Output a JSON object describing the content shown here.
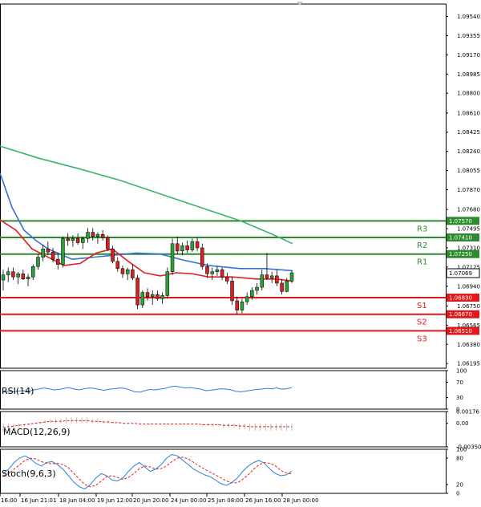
{
  "chart_data": [
    {
      "type": "candlestick",
      "price_labels": [
        "1.09540",
        "1.09355",
        "1.09170",
        "1.08985",
        "1.08800",
        "1.08610",
        "1.08425",
        "1.08240",
        "1.08055",
        "1.07870",
        "1.07680",
        "1.07495",
        "1.07310",
        "1.07125",
        "1.06940",
        "1.06750",
        "1.06565",
        "1.06380",
        "1.06195"
      ],
      "ylim": [
        1.0615,
        1.0966
      ],
      "time_labels": [
        "16:00",
        "16 Jun 21:01",
        "18 Jun 04:00",
        "19 Jun 12:00",
        "20 Jun 20:00",
        "24 Jun 00:00",
        "25 Jun 08:00",
        "26 Jun 16:00",
        "28 Jun 00:00"
      ],
      "current_price": "1.07069",
      "levels": [
        {
          "name": "R3",
          "value": 1.0757,
          "label": "1.07570",
          "color": "#2e8b2e"
        },
        {
          "name": "R2",
          "value": 1.0741,
          "label": "1.07410",
          "color": "#2e8b2e"
        },
        {
          "name": "R1",
          "value": 1.0725,
          "label": "1.07250",
          "color": "#2e8b2e"
        },
        {
          "name": "S1",
          "value": 1.0683,
          "label": "1.06830",
          "color": "#e0191b"
        },
        {
          "name": "S2",
          "value": 1.0667,
          "label": "1.06670",
          "color": "#e0191b"
        },
        {
          "name": "S3",
          "value": 1.0651,
          "label": "1.06510",
          "color": "#e0191b"
        }
      ],
      "candles": [
        [
          1.07,
          1.071,
          1.069,
          1.0705
        ],
        [
          1.0705,
          1.0712,
          1.0698,
          1.0708
        ],
        [
          1.0708,
          1.0712,
          1.07,
          1.0703
        ],
        [
          1.0703,
          1.0708,
          1.0696,
          1.0706
        ],
        [
          1.0706,
          1.071,
          1.07,
          1.0701
        ],
        [
          1.0701,
          1.0706,
          1.0694,
          1.0703
        ],
        [
          1.0703,
          1.0715,
          1.07,
          1.0713
        ],
        [
          1.0713,
          1.0725,
          1.071,
          1.0722
        ],
        [
          1.0722,
          1.0734,
          1.0718,
          1.073
        ],
        [
          1.073,
          1.0737,
          1.0724,
          1.0727
        ],
        [
          1.0727,
          1.0731,
          1.0717,
          1.072
        ],
        [
          1.072,
          1.0726,
          1.071,
          1.0715
        ],
        [
          1.0715,
          1.0742,
          1.0712,
          1.074
        ],
        [
          1.074,
          1.0745,
          1.0733,
          1.0738
        ],
        [
          1.0738,
          1.0743,
          1.0732,
          1.074
        ],
        [
          1.074,
          1.0745,
          1.0734,
          1.0736
        ],
        [
          1.0736,
          1.0742,
          1.073,
          1.074
        ],
        [
          1.074,
          1.075,
          1.0736,
          1.0746
        ],
        [
          1.0746,
          1.075,
          1.0738,
          1.0742
        ],
        [
          1.0742,
          1.0746,
          1.0735,
          1.0744
        ],
        [
          1.0744,
          1.0748,
          1.0738,
          1.0741
        ],
        [
          1.0741,
          1.0743,
          1.0728,
          1.073
        ],
        [
          1.073,
          1.0733,
          1.0716,
          1.0718
        ],
        [
          1.0718,
          1.0722,
          1.0708,
          1.0711
        ],
        [
          1.0711,
          1.0714,
          1.0702,
          1.0706
        ],
        [
          1.0706,
          1.0712,
          1.07,
          1.071
        ],
        [
          1.071,
          1.0715,
          1.07,
          1.0702
        ],
        [
          1.0702,
          1.0705,
          1.0672,
          1.0676
        ],
        [
          1.0676,
          1.069,
          1.0673,
          1.0688
        ],
        [
          1.0688,
          1.0692,
          1.068,
          1.0684
        ],
        [
          1.0684,
          1.069,
          1.0676,
          1.0686
        ],
        [
          1.0686,
          1.069,
          1.068,
          1.0682
        ],
        [
          1.0682,
          1.0688,
          1.0677,
          1.0685
        ],
        [
          1.0685,
          1.0712,
          1.0682,
          1.0708
        ],
        [
          1.0708,
          1.074,
          1.0705,
          1.0735
        ],
        [
          1.0735,
          1.0742,
          1.0725,
          1.0728
        ],
        [
          1.0728,
          1.0736,
          1.0724,
          1.0733
        ],
        [
          1.0733,
          1.0738,
          1.0726,
          1.0729
        ],
        [
          1.0729,
          1.074,
          1.0727,
          1.0737
        ],
        [
          1.0737,
          1.0741,
          1.0728,
          1.0731
        ],
        [
          1.0731,
          1.0735,
          1.071,
          1.0713
        ],
        [
          1.0713,
          1.0716,
          1.0702,
          1.0706
        ],
        [
          1.0706,
          1.0712,
          1.07,
          1.0708
        ],
        [
          1.0708,
          1.0713,
          1.0704,
          1.071
        ],
        [
          1.071,
          1.0712,
          1.07,
          1.0703
        ],
        [
          1.0703,
          1.0707,
          1.0696,
          1.0699
        ],
        [
          1.0699,
          1.0703,
          1.0676,
          1.068
        ],
        [
          1.068,
          1.0684,
          1.0667,
          1.0671
        ],
        [
          1.0671,
          1.0682,
          1.0668,
          1.0679
        ],
        [
          1.0679,
          1.0688,
          1.0676,
          1.0684
        ],
        [
          1.0684,
          1.0693,
          1.0681,
          1.069
        ],
        [
          1.069,
          1.0697,
          1.0686,
          1.0693
        ],
        [
          1.0693,
          1.071,
          1.069,
          1.0705
        ],
        [
          1.0705,
          1.0726,
          1.07,
          1.0702
        ],
        [
          1.0702,
          1.0708,
          1.0697,
          1.0704
        ],
        [
          1.0704,
          1.071,
          1.0694,
          1.0697
        ],
        [
          1.0697,
          1.0701,
          1.0686,
          1.0689
        ],
        [
          1.0689,
          1.0702,
          1.0688,
          1.0699
        ],
        [
          1.0699,
          1.0709,
          1.0697,
          1.0707
        ]
      ],
      "ma_blue": [
        [
          0,
          1.0803
        ],
        [
          15,
          1.077
        ],
        [
          30,
          1.0748
        ],
        [
          45,
          1.0738
        ],
        [
          60,
          1.073
        ],
        [
          90,
          1.072
        ],
        [
          130,
          1.0723
        ],
        [
          170,
          1.0726
        ],
        [
          200,
          1.0725
        ],
        [
          230,
          1.0719
        ],
        [
          260,
          1.0714
        ],
        [
          300,
          1.0711
        ],
        [
          330,
          1.0711
        ],
        [
          365,
          1.0709
        ]
      ],
      "ma_red": [
        [
          0,
          1.0758
        ],
        [
          20,
          1.0748
        ],
        [
          40,
          1.073
        ],
        [
          60,
          1.0722
        ],
        [
          80,
          1.0714
        ],
        [
          100,
          1.0716
        ],
        [
          120,
          1.0726
        ],
        [
          140,
          1.073
        ],
        [
          160,
          1.0718
        ],
        [
          180,
          1.0707
        ],
        [
          200,
          1.0704
        ],
        [
          220,
          1.0707
        ],
        [
          240,
          1.0706
        ],
        [
          260,
          1.0703
        ],
        [
          290,
          1.0703
        ],
        [
          320,
          1.0701
        ],
        [
          345,
          1.0701
        ],
        [
          365,
          1.0699
        ]
      ],
      "ma_green": [
        [
          0,
          1.0829
        ],
        [
          50,
          1.0817
        ],
        [
          100,
          1.0807
        ],
        [
          150,
          1.0796
        ],
        [
          200,
          1.0783
        ],
        [
          250,
          1.077
        ],
        [
          300,
          1.0757
        ],
        [
          340,
          1.0744
        ],
        [
          365,
          1.0735
        ]
      ]
    },
    {
      "type": "line",
      "label": "RSI(14)",
      "ticks": [
        "100",
        "70",
        "30",
        "0"
      ],
      "ylim": [
        0,
        100
      ],
      "values": [
        44,
        46,
        45,
        47,
        48,
        46,
        50,
        52,
        55,
        53,
        50,
        51,
        54,
        56,
        52,
        50,
        53,
        55,
        54,
        51,
        49,
        52,
        53,
        55,
        54,
        50,
        45,
        44,
        48,
        51,
        50,
        52,
        54,
        58,
        60,
        57,
        55,
        56,
        54,
        52,
        48,
        49,
        51,
        53,
        52,
        50,
        46,
        45,
        47,
        49,
        51,
        52,
        54,
        53,
        55,
        52,
        53,
        56
      ]
    },
    {
      "type": "line",
      "label": "MACD(12,26,9)",
      "ticks": [
        "0.00176",
        "0.00",
        "-0.003505"
      ],
      "ylim": [
        -0.003505,
        0.00176
      ],
      "values": [
        -0.0006,
        -0.0005,
        -0.0004,
        -0.0003,
        -0.0002,
        -0.0001,
        0.0,
        0.0001,
        0.0002,
        0.0003,
        0.0003,
        0.0003,
        0.0004,
        0.0004,
        0.0004,
        0.0004,
        0.0004,
        0.0003,
        0.0003,
        0.0002,
        0.0002,
        0.0001,
        0.0001,
        0.0,
        0.0,
        0.0,
        -0.0001,
        -0.0001,
        -0.0001,
        -0.0001,
        -0.0001,
        -0.0001,
        -0.0001,
        -0.0001,
        -0.0001,
        -0.0001,
        -0.0001,
        -0.0001,
        -0.0002,
        -0.0002,
        -0.0002,
        -0.0002,
        -0.0003,
        -0.0003,
        -0.0003,
        -0.0004,
        -0.0004,
        -0.0005,
        -0.0005,
        -0.0005,
        -0.0005,
        -0.0005,
        -0.0005,
        -0.0005,
        -0.0005,
        -0.0005
      ]
    },
    {
      "type": "line",
      "label": "Stoch(9,6,3)",
      "ticks": [
        "100",
        "80",
        "20",
        "0"
      ],
      "ylim": [
        0,
        100
      ],
      "k": [
        45,
        55,
        70,
        80,
        85,
        78,
        68,
        62,
        70,
        72,
        65,
        55,
        40,
        25,
        15,
        10,
        20,
        35,
        45,
        40,
        30,
        28,
        35,
        50,
        62,
        70,
        60,
        50,
        55,
        65,
        80,
        88,
        85,
        75,
        65,
        55,
        48,
        42,
        38,
        30,
        22,
        18,
        25,
        35,
        50,
        62,
        70,
        75,
        68,
        55,
        45,
        40,
        42,
        50
      ],
      "d": [
        40,
        45,
        55,
        65,
        75,
        80,
        78,
        72,
        68,
        67,
        68,
        65,
        58,
        45,
        32,
        20,
        15,
        18,
        28,
        38,
        40,
        36,
        32,
        36,
        45,
        56,
        62,
        60,
        55,
        56,
        62,
        72,
        80,
        82,
        78,
        70,
        62,
        55,
        48,
        42,
        35,
        28,
        24,
        24,
        32,
        42,
        55,
        65,
        70,
        68,
        62,
        52,
        46,
        44
      ]
    }
  ]
}
